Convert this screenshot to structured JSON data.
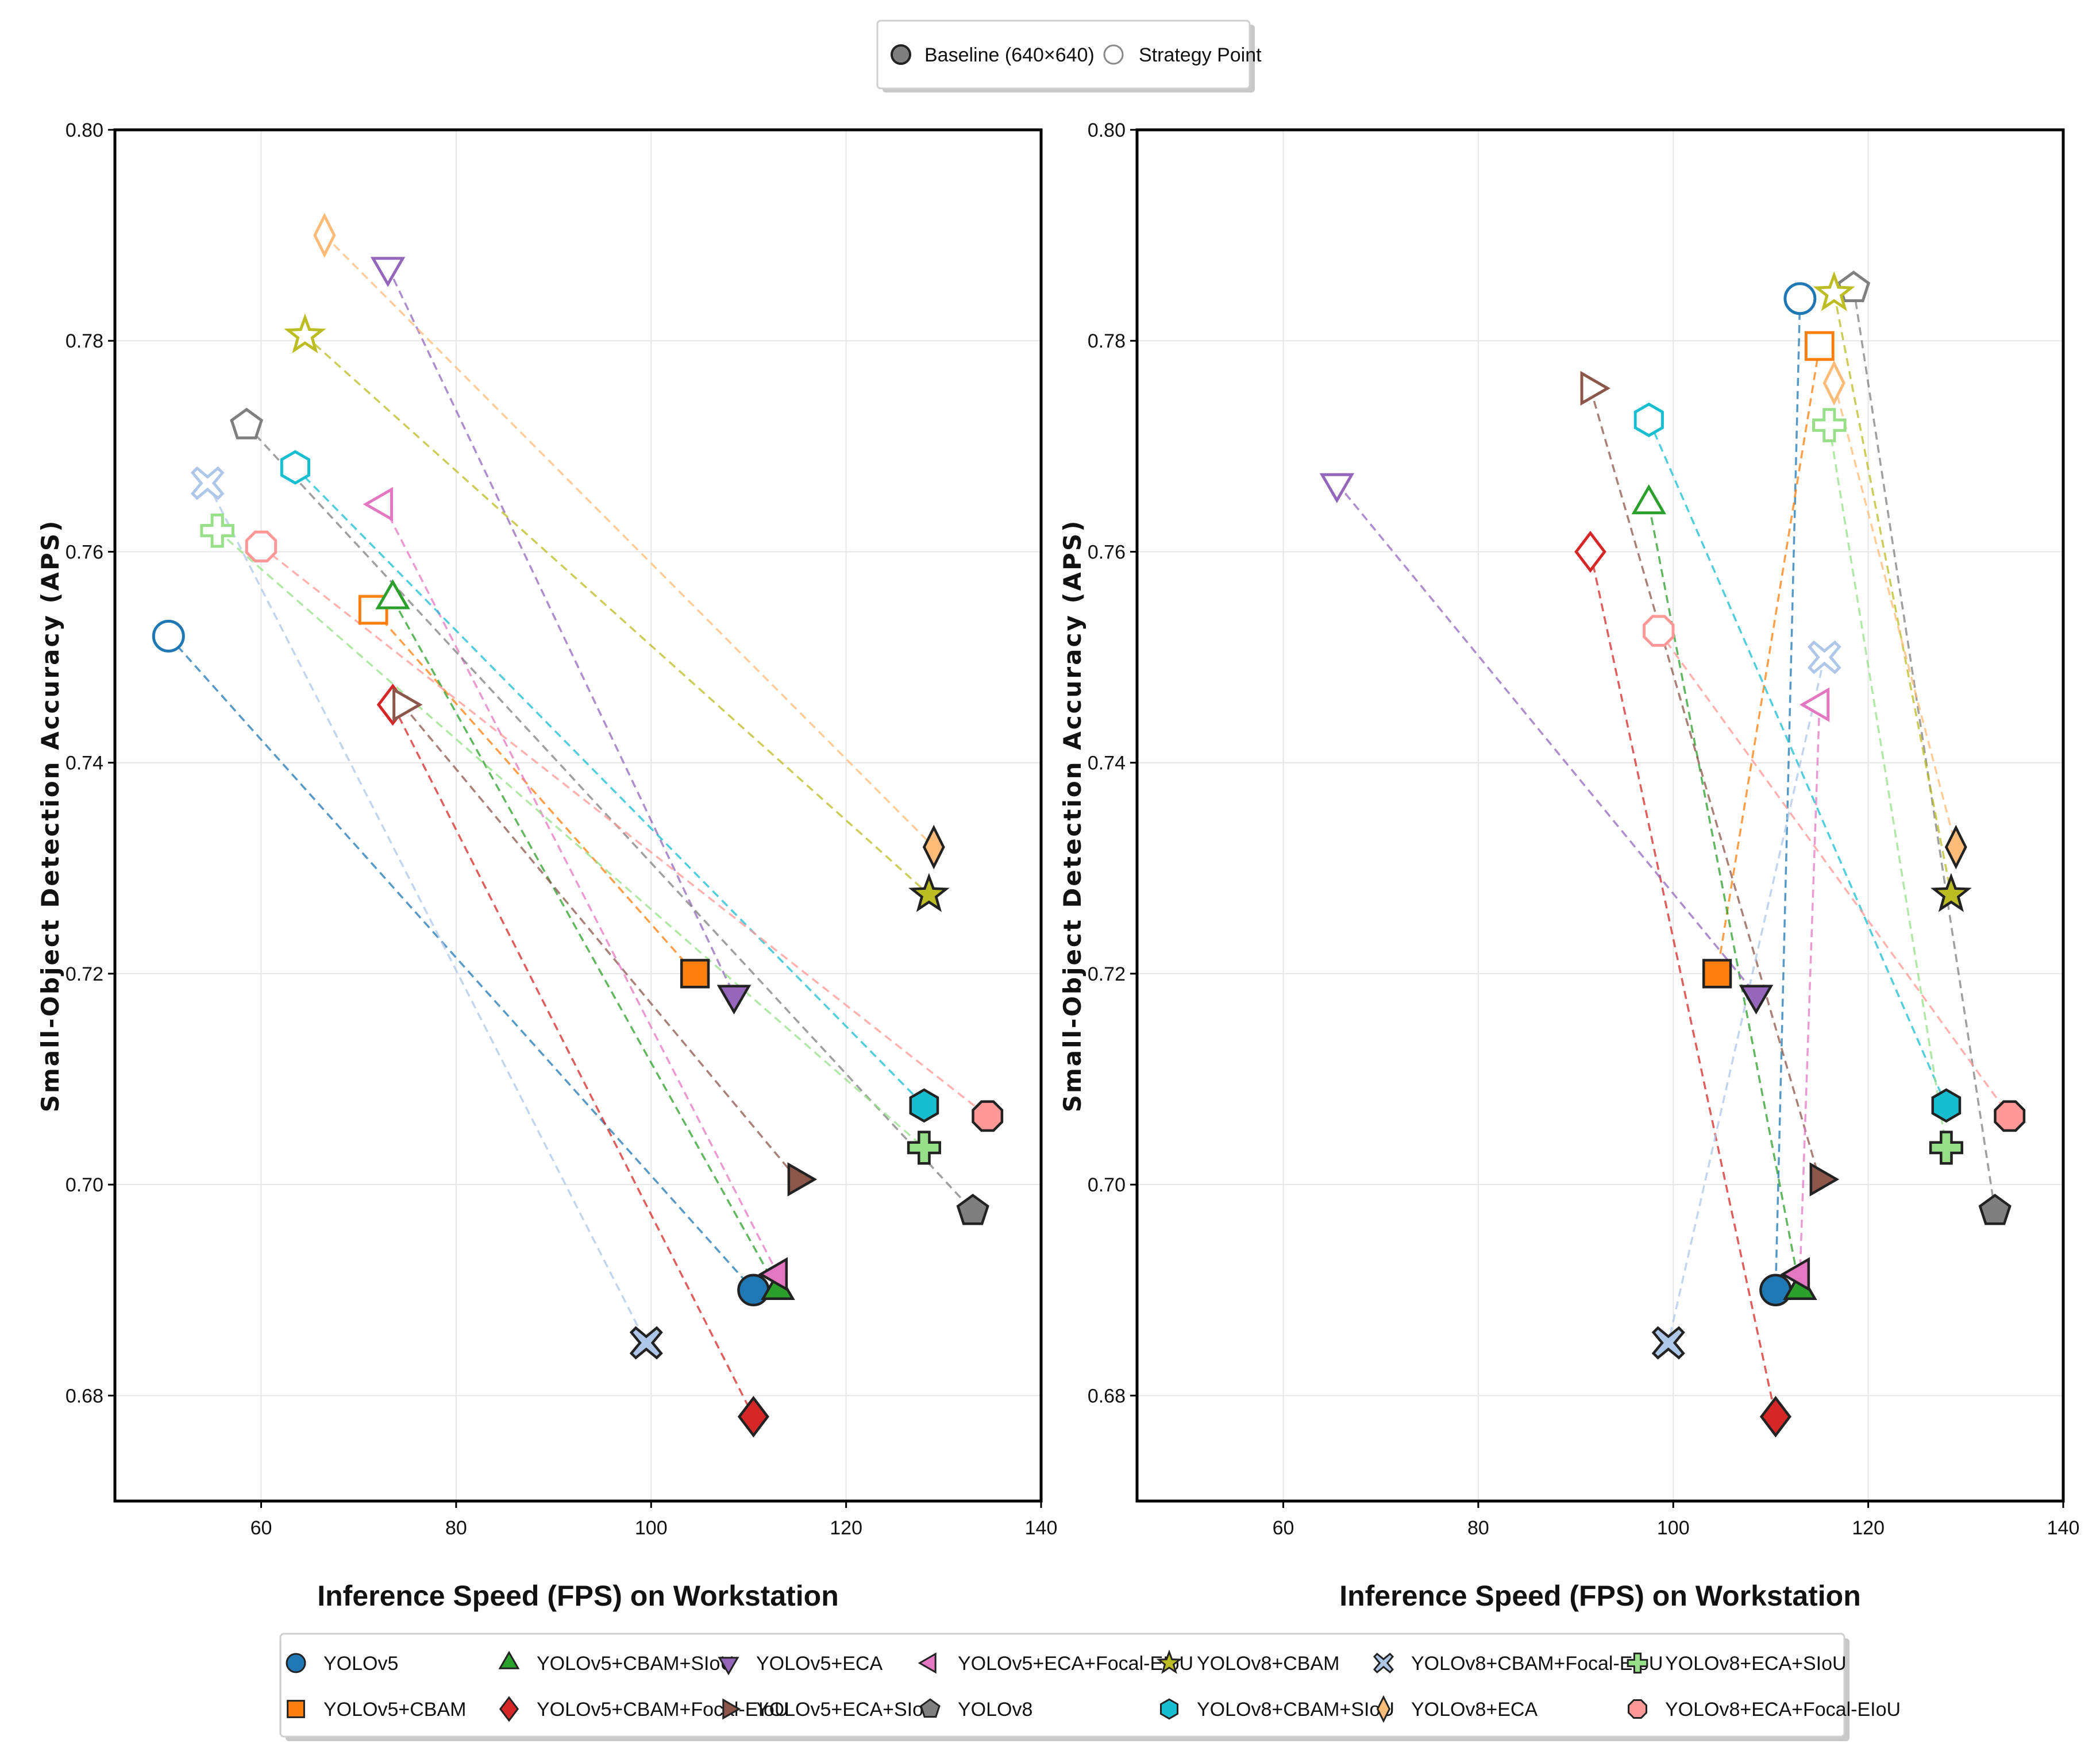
{
  "chart_data": {
    "type": "scatter",
    "marker_legend": [
      {
        "label": "Baseline (640×640)",
        "style": "filled"
      },
      {
        "label": "Strategy Point",
        "style": "hollow"
      }
    ],
    "xlabel": "Inference Speed (FPS) on Workstation",
    "ylabel": "Small-Object Detection Accuracy (APS)",
    "xlim": [
      45,
      140
    ],
    "ylim": [
      0.67,
      0.8
    ],
    "x_ticks": [
      "60",
      "80",
      "100",
      "120",
      "140"
    ],
    "y_ticks": [
      "0.68",
      "0.70",
      "0.72",
      "0.74",
      "0.76",
      "0.78",
      "0.80"
    ],
    "series": [
      {
        "name": "YOLOv5",
        "color": "#1f77b4",
        "marker": "circle",
        "baseline": [
          110.5,
          0.69
        ],
        "strategy_left": [
          50.5,
          0.752
        ],
        "strategy_right": [
          113,
          0.784
        ]
      },
      {
        "name": "YOLOv5+CBAM",
        "color": "#ff7f0e",
        "marker": "square",
        "baseline": [
          104.5,
          0.72
        ],
        "strategy_left": [
          71.5,
          0.7545
        ],
        "strategy_right": [
          115,
          0.7795
        ]
      },
      {
        "name": "YOLOv5+CBAM+SIoU",
        "color": "#2ca02c",
        "marker": "triangle-up",
        "baseline": [
          113,
          0.69
        ],
        "strategy_left": [
          73.5,
          0.7555
        ],
        "strategy_right": [
          97.5,
          0.7645
        ]
      },
      {
        "name": "YOLOv5+CBAM+Focal-EIoU",
        "color": "#d62728",
        "marker": "diamond",
        "baseline": [
          110.5,
          0.678
        ],
        "strategy_left": [
          73.5,
          0.7455
        ],
        "strategy_right": [
          91.5,
          0.76
        ]
      },
      {
        "name": "YOLOv5+ECA",
        "color": "#9467bd",
        "marker": "triangle-down",
        "baseline": [
          108.5,
          0.718
        ],
        "strategy_left": [
          73,
          0.787
        ],
        "strategy_right": [
          65.5,
          0.7665
        ]
      },
      {
        "name": "YOLOv5+ECA+SIoU",
        "color": "#8c564b",
        "marker": "triangle-right",
        "baseline": [
          115,
          0.7005
        ],
        "strategy_left": [
          74.5,
          0.7455
        ],
        "strategy_right": [
          91.5,
          0.7755
        ]
      },
      {
        "name": "YOLOv5+ECA+Focal-EIoU",
        "color": "#e377c2",
        "marker": "triangle-left",
        "baseline": [
          113,
          0.6915
        ],
        "strategy_left": [
          72.5,
          0.7645
        ],
        "strategy_right": [
          115,
          0.7455
        ]
      },
      {
        "name": "YOLOv8",
        "color": "#7f7f7f",
        "marker": "pentagon",
        "baseline": [
          133,
          0.6975
        ],
        "strategy_left": [
          58.5,
          0.772
        ],
        "strategy_right": [
          118.5,
          0.785
        ]
      },
      {
        "name": "YOLOv8+CBAM",
        "color": "#bcbd22",
        "marker": "star",
        "baseline": [
          128.5,
          0.7275
        ],
        "strategy_left": [
          64.5,
          0.7805
        ],
        "strategy_right": [
          116.5,
          0.7845
        ]
      },
      {
        "name": "YOLOv8+CBAM+SIoU",
        "color": "#17becf",
        "marker": "hexagon",
        "baseline": [
          128,
          0.7075
        ],
        "strategy_left": [
          63.5,
          0.768
        ],
        "strategy_right": [
          97.5,
          0.7725
        ]
      },
      {
        "name": "YOLOv8+CBAM+Focal-EIoU",
        "color": "#aec7e8",
        "marker": "x",
        "baseline": [
          99.5,
          0.685
        ],
        "strategy_left": [
          54.5,
          0.7665
        ],
        "strategy_right": [
          115.5,
          0.75
        ]
      },
      {
        "name": "YOLOv8+ECA",
        "color": "#ffbb78",
        "marker": "thin-diamond",
        "baseline": [
          129,
          0.732
        ],
        "strategy_left": [
          66.5,
          0.79
        ],
        "strategy_right": [
          116.5,
          0.776
        ]
      },
      {
        "name": "YOLOv8+ECA+SIoU",
        "color": "#98df8a",
        "marker": "plus",
        "baseline": [
          128,
          0.7035
        ],
        "strategy_left": [
          55.5,
          0.762
        ],
        "strategy_right": [
          116,
          0.772
        ]
      },
      {
        "name": "YOLOv8+ECA+Focal-EIoU",
        "color": "#ff9896",
        "marker": "octagon",
        "baseline": [
          134.5,
          0.7065
        ],
        "strategy_left": [
          60,
          0.7605
        ],
        "strategy_right": [
          98.5,
          0.7525
        ]
      }
    ],
    "grid": true,
    "legend_position": "bottom"
  }
}
